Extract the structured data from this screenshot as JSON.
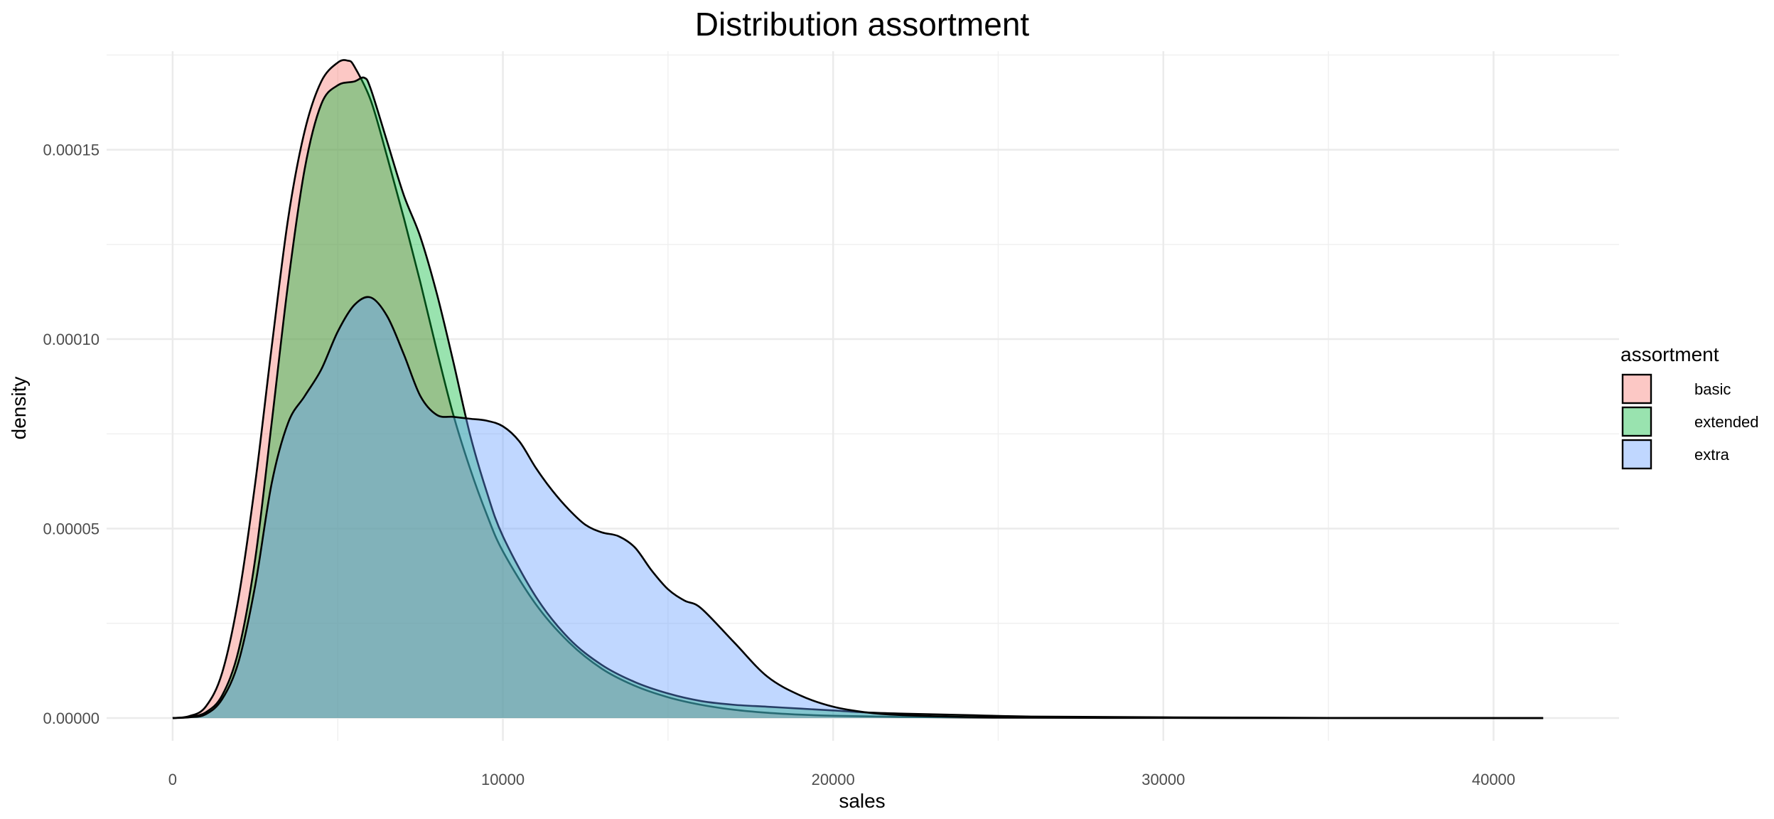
{
  "chart_data": {
    "type": "area",
    "title": "Distribution assortment",
    "xlabel": "sales",
    "ylabel": "density",
    "xlim": [
      -2000,
      43800
    ],
    "ylim": [
      -6e-06,
      0.000176
    ],
    "x_ticks": [
      0,
      10000,
      20000,
      30000,
      40000
    ],
    "x_tick_labels": [
      "0",
      "10000",
      "20000",
      "30000",
      "40000"
    ],
    "y_ticks": [
      0,
      5e-05,
      0.0001,
      0.00015
    ],
    "y_tick_labels": [
      "0.00000",
      "0.00005",
      "0.00010",
      "0.00015"
    ],
    "grid": true,
    "legend": {
      "title": "assortment",
      "position": "right"
    },
    "series": [
      {
        "name": "basic",
        "color": "#F8766D",
        "x": [
          0,
          500,
          1000,
          1500,
          2000,
          2500,
          3000,
          3500,
          4000,
          4500,
          5000,
          5300,
          5500,
          6000,
          6500,
          7000,
          7500,
          8000,
          8500,
          9000,
          9500,
          10000,
          11000,
          12000,
          13000,
          14000,
          15000,
          16000,
          17000,
          18000,
          19000,
          20000,
          22000,
          25000,
          30000,
          35000,
          41500
        ],
        "y": [
          0,
          5e-07,
          3e-06,
          1.2e-05,
          3.2e-05,
          6.2e-05,
          9.8e-05,
          0.000132,
          0.000155,
          0.000168,
          0.000173,
          0.0001735,
          0.000172,
          0.000163,
          0.000148,
          0.000132,
          0.000115,
          9.7e-05,
          8e-05,
          6.6e-05,
          5.4e-05,
          4.4e-05,
          3e-05,
          2e-05,
          1.3e-05,
          8.5e-06,
          5.5e-06,
          3.5e-06,
          2.2e-06,
          1.4e-06,
          9e-07,
          6e-07,
          3e-07,
          1e-07,
          3e-08,
          1e-08,
          0
        ]
      },
      {
        "name": "extended",
        "color": "#00BA38",
        "x": [
          0,
          500,
          1000,
          1500,
          2000,
          2500,
          3000,
          3500,
          4000,
          4500,
          5000,
          5500,
          5800,
          6000,
          6500,
          7000,
          7500,
          8000,
          8500,
          9000,
          9500,
          10000,
          11000,
          12000,
          13000,
          14000,
          15000,
          16000,
          17000,
          18000,
          19000,
          20000,
          21000,
          22000,
          24000,
          26000,
          30000,
          35000,
          41500
        ],
        "y": [
          0,
          3e-07,
          1.5e-06,
          6e-06,
          1.8e-05,
          4.2e-05,
          7.8e-05,
          0.000115,
          0.000145,
          0.000162,
          0.000167,
          0.000168,
          0.000169,
          0.000166,
          0.000152,
          0.000138,
          0.000127,
          0.000112,
          9.4e-05,
          7.5e-05,
          6e-05,
          4.8e-05,
          3.2e-05,
          2.1e-05,
          1.4e-05,
          9.5e-06,
          6.5e-06,
          4.5e-06,
          3.5e-06,
          3e-06,
          2.5e-06,
          2e-06,
          1.5e-06,
          1.2e-06,
          8e-07,
          4e-07,
          2e-07,
          5e-08,
          0
        ]
      },
      {
        "name": "extra",
        "color": "#619CFF",
        "x": [
          0,
          500,
          1000,
          1500,
          2000,
          2500,
          3000,
          3500,
          4000,
          4500,
          5000,
          5500,
          6000,
          6500,
          7000,
          7500,
          8000,
          8500,
          9000,
          9500,
          10000,
          10500,
          11000,
          11500,
          12000,
          12500,
          13000,
          13500,
          14000,
          14500,
          15000,
          15500,
          16000,
          17000,
          18000,
          19000,
          20000,
          21000,
          22000,
          24000,
          28000,
          35000,
          41500
        ],
        "y": [
          0,
          2e-07,
          1e-06,
          5e-06,
          1.5e-05,
          3.5e-05,
          6.2e-05,
          7.8e-05,
          8.5e-05,
          9.2e-05,
          0.000102,
          0.000109,
          0.000111,
          0.000106,
          9.6e-05,
          8.5e-05,
          8e-05,
          7.95e-05,
          7.9e-05,
          7.85e-05,
          7.7e-05,
          7.3e-05,
          6.6e-05,
          6e-05,
          5.5e-05,
          5.1e-05,
          4.9e-05,
          4.8e-05,
          4.5e-05,
          3.9e-05,
          3.4e-05,
          3.1e-05,
          2.9e-05,
          2e-05,
          1.1e-05,
          6e-06,
          3e-06,
          1.5e-06,
          8e-07,
          3e-07,
          1e-07,
          2e-08,
          0
        ]
      }
    ]
  }
}
